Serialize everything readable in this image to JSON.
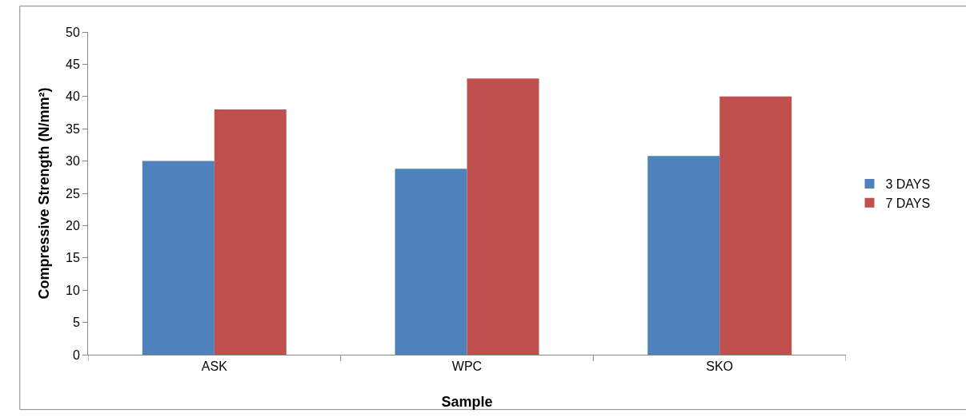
{
  "chart_data": {
    "type": "bar",
    "xlabel": "Sample",
    "ylabel": "Compressive Strength (N/mm²)",
    "categories": [
      "ASK",
      "WPC",
      "SKO"
    ],
    "series": [
      {
        "name": "3 DAYS",
        "color": "#4f81bd",
        "values": [
          30,
          28.8,
          30.8
        ]
      },
      {
        "name": "7 DAYS",
        "color": "#c0504d",
        "values": [
          38,
          42.8,
          40
        ]
      }
    ],
    "ylim": [
      0,
      50
    ],
    "yticks": [
      0,
      5,
      10,
      15,
      20,
      25,
      30,
      35,
      40,
      45,
      50
    ],
    "grid": false,
    "legend": "right"
  }
}
